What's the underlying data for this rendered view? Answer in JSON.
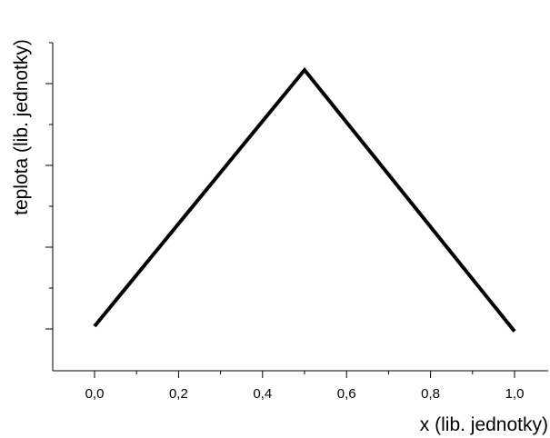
{
  "chart_data": {
    "type": "line",
    "title": "",
    "xlabel": "x (lib. jednotky)",
    "ylabel": "teplota (lib. jednotky)",
    "xlim": [
      -0.1,
      1.1
    ],
    "x_ticks": [
      "0,0",
      "0,2",
      "0,4",
      "0,6",
      "0,8",
      "1,0"
    ],
    "y_tick_labels_shown": false,
    "grid": false,
    "legend": "none",
    "series": [
      {
        "x": [
          0.0,
          0.5,
          1.0
        ],
        "y": [
          0.0,
          1.0,
          -0.02
        ]
      }
    ],
    "colors": {
      "line": "#000000",
      "axis": "#000000",
      "background": "#ffffff"
    }
  }
}
